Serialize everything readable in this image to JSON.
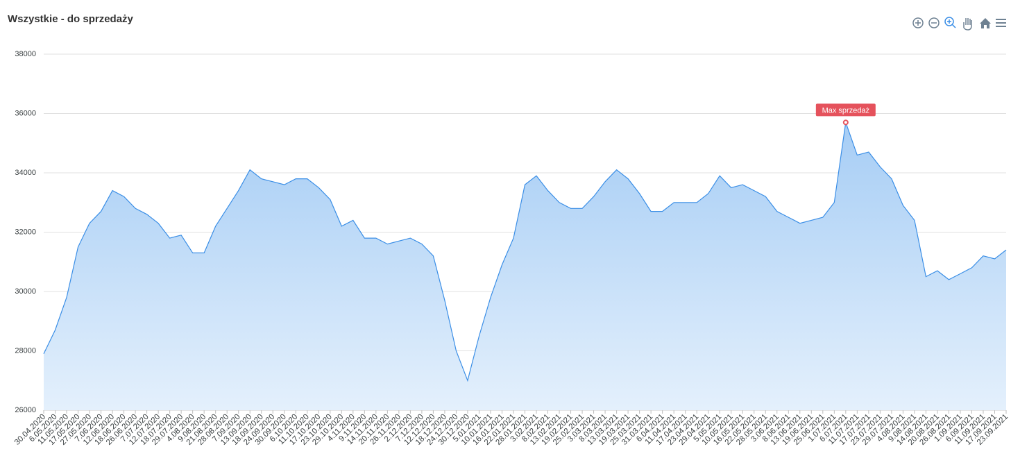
{
  "chart_data": {
    "type": "area",
    "title": "Wszystkie - do sprzedaży",
    "categories": [
      "30.04.2020",
      "6.05.2020",
      "11.05.2020",
      "17.05.2020",
      "27.05.2020",
      "7.06.2020",
      "12.06.2020",
      "18.06.2020",
      "26.06.2020",
      "7.07.2020",
      "12.07.2020",
      "18.07.2020",
      "29.07.2020",
      "4.08.2020",
      "9.08.2020",
      "21.08.2020",
      "28.08.2020",
      "7.09.2020",
      "13.09.2020",
      "18.09.2020",
      "24.09.2020",
      "30.09.2020",
      "6.10.2020",
      "11.10.2020",
      "17.10.2020",
      "23.10.2020",
      "29.10.2020",
      "4.11.2020",
      "9.11.2020",
      "14.11.2020",
      "20.11.2020",
      "26.11.2020",
      "2.12.2020",
      "7.12.2020",
      "12.12.2020",
      "18.12.2020",
      "24.12.2020",
      "30.12.2020",
      "5.01.2021",
      "10.01.2021",
      "16.01.2021",
      "22.01.2021",
      "28.01.2021",
      "3.02.2021",
      "8.02.2021",
      "13.02.2021",
      "19.02.2021",
      "25.02.2021",
      "3.03.2021",
      "8.03.2021",
      "13.03.2021",
      "19.03.2021",
      "25.03.2021",
      "31.03.2021",
      "6.04.2021",
      "11.04.2021",
      "17.04.2021",
      "23.04.2021",
      "29.04.2021",
      "5.05.2021",
      "10.05.2021",
      "16.05.2021",
      "22.05.2021",
      "28.05.2021",
      "3.06.2021",
      "8.06.2021",
      "13.06.2021",
      "19.06.2021",
      "25.06.2021",
      "1.07.2021",
      "6.07.2021",
      "11.07.2021",
      "17.07.2021",
      "23.07.2021",
      "29.07.2021",
      "4.08.2021",
      "9.08.2021",
      "14.08.2021",
      "20.08.2021",
      "26.08.2021",
      "1.09.2021",
      "6.09.2021",
      "11.09.2021",
      "17.09.2021",
      "23.09.2021"
    ],
    "values": [
      27900,
      28700,
      29800,
      31500,
      32300,
      32700,
      33400,
      33200,
      32800,
      32600,
      32300,
      31800,
      31900,
      31300,
      31300,
      32200,
      32800,
      33400,
      34100,
      33800,
      33700,
      33600,
      33800,
      33800,
      33500,
      33100,
      32200,
      32400,
      31800,
      31800,
      31600,
      31700,
      31800,
      31600,
      31200,
      29700,
      28000,
      27000,
      28500,
      29800,
      30900,
      31800,
      33600,
      33900,
      33400,
      33000,
      32800,
      32800,
      33200,
      33700,
      34100,
      33800,
      33300,
      32700,
      32700,
      33000,
      33000,
      33000,
      33300,
      33900,
      33500,
      33600,
      33400,
      33200,
      32700,
      32500,
      32300,
      32400,
      32500,
      33000,
      35700,
      34600,
      34700,
      34200,
      33800,
      32900,
      32400,
      30500,
      30700,
      30400,
      30600,
      30800,
      31200,
      31100,
      31400
    ],
    "color": "#3a8ee6",
    "ylim": [
      26000,
      38000
    ],
    "yticks": [
      26000,
      28000,
      30000,
      32000,
      34000,
      36000,
      38000
    ],
    "grid": true,
    "annotation": {
      "text": "Max sprzedaż",
      "x": "6.07.2021",
      "color": "#e5525c"
    }
  }
}
